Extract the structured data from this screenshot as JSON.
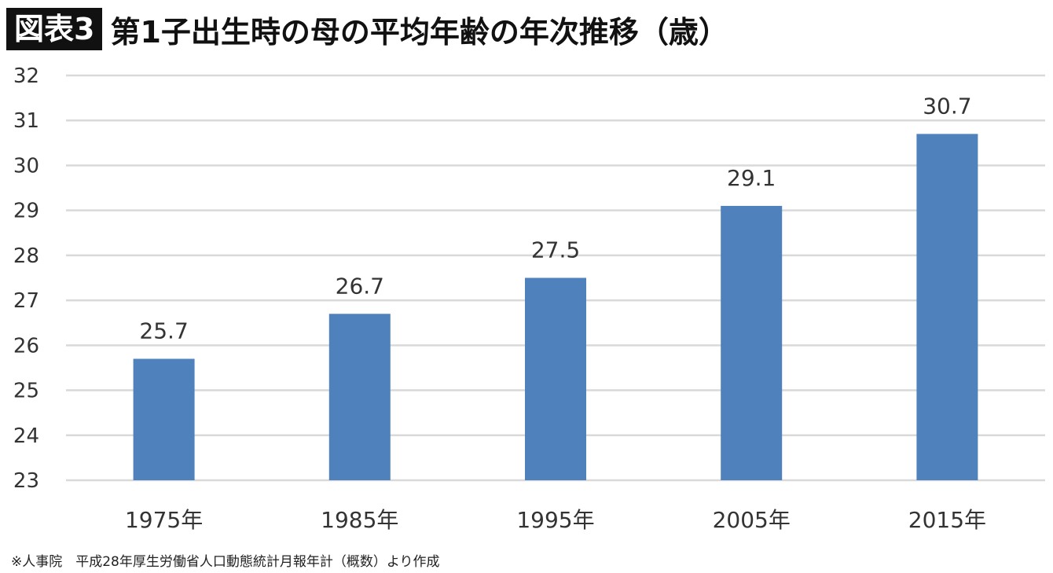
{
  "figure_label": "図表3",
  "title": "第1子出生時の母の平均年齢の年次推移（歳）",
  "source": "※人事院　平成28年厚生労働省人口動態統計月報年計（概数）より作成",
  "colors": {
    "bar": "#4f81bd",
    "grid": "#d9d9d9",
    "text": "#333333"
  },
  "chart_data": {
    "type": "bar",
    "title": "第1子出生時の母の平均年齢の年次推移（歳）",
    "categories": [
      "1975年",
      "1985年",
      "1995年",
      "2005年",
      "2015年"
    ],
    "values": [
      25.7,
      26.7,
      27.5,
      29.1,
      30.7
    ],
    "data_labels": [
      "25.7",
      "26.7",
      "27.5",
      "29.1",
      "30.7"
    ],
    "ylim": [
      23,
      32
    ],
    "yticks": [
      23,
      24,
      25,
      26,
      27,
      28,
      29,
      30,
      31,
      32
    ],
    "grid": true,
    "legend": "none"
  }
}
